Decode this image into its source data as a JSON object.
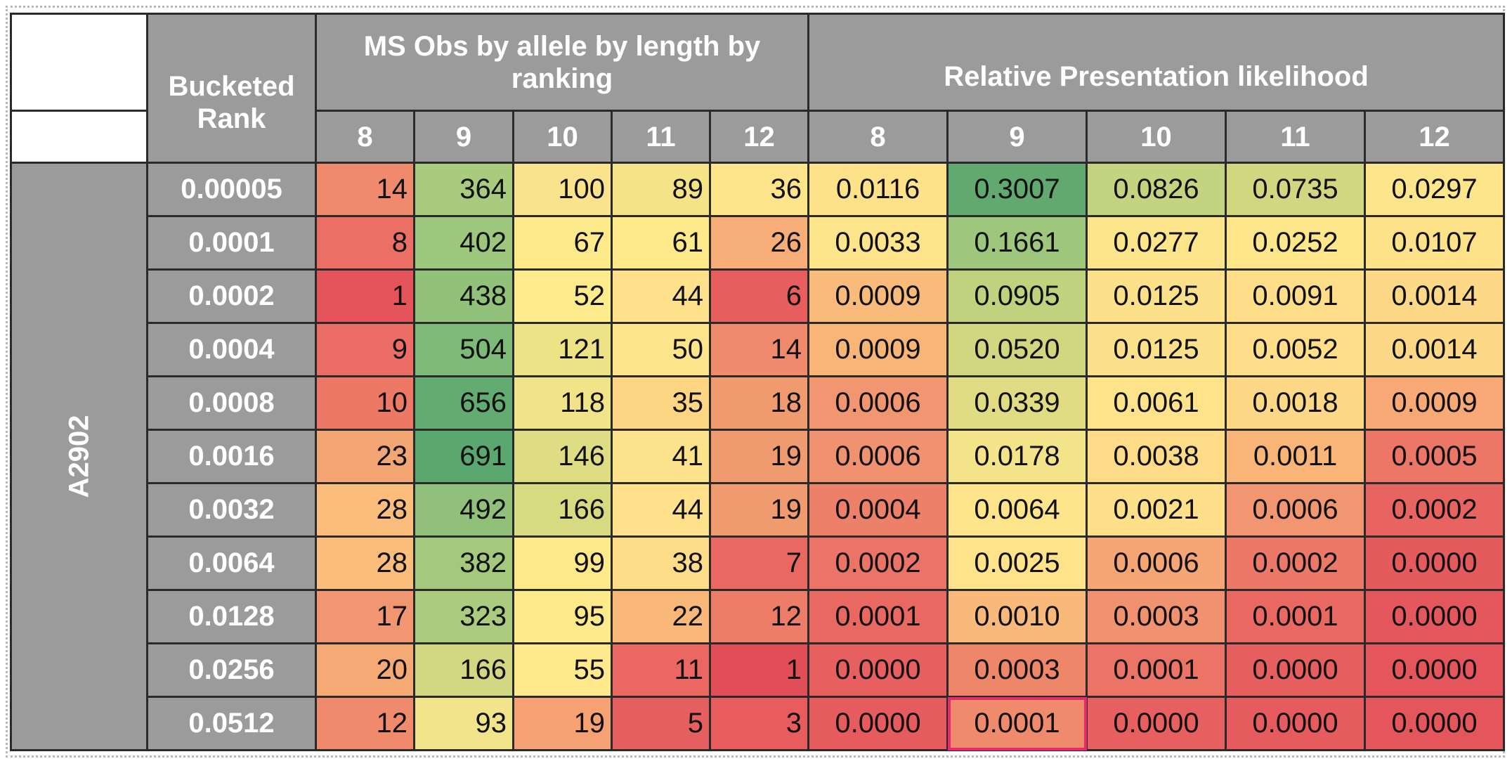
{
  "table": {
    "allele": "A2902",
    "rank_header": "Bucketed Rank",
    "ms_header": "MS Obs by allele by length by ranking",
    "rel_header": "Relative Presentation likelihood",
    "lengths": [
      "8",
      "9",
      "10",
      "11",
      "12"
    ],
    "rows": [
      {
        "rank": "0.00005",
        "ms": [
          "14",
          "364",
          "100",
          "89",
          "36"
        ],
        "rel": [
          "0.0116",
          "0.3007",
          "0.0826",
          "0.0735",
          "0.0297"
        ]
      },
      {
        "rank": "0.0001",
        "ms": [
          "8",
          "402",
          "67",
          "61",
          "26"
        ],
        "rel": [
          "0.0033",
          "0.1661",
          "0.0277",
          "0.0252",
          "0.0107"
        ]
      },
      {
        "rank": "0.0002",
        "ms": [
          "1",
          "438",
          "52",
          "44",
          "6"
        ],
        "rel": [
          "0.0009",
          "0.0905",
          "0.0125",
          "0.0091",
          "0.0014"
        ]
      },
      {
        "rank": "0.0004",
        "ms": [
          "9",
          "504",
          "121",
          "50",
          "14"
        ],
        "rel": [
          "0.0009",
          "0.0520",
          "0.0125",
          "0.0052",
          "0.0014"
        ]
      },
      {
        "rank": "0.0008",
        "ms": [
          "10",
          "656",
          "118",
          "35",
          "18"
        ],
        "rel": [
          "0.0006",
          "0.0339",
          "0.0061",
          "0.0018",
          "0.0009"
        ]
      },
      {
        "rank": "0.0016",
        "ms": [
          "23",
          "691",
          "146",
          "41",
          "19"
        ],
        "rel": [
          "0.0006",
          "0.0178",
          "0.0038",
          "0.0011",
          "0.0005"
        ]
      },
      {
        "rank": "0.0032",
        "ms": [
          "28",
          "492",
          "166",
          "44",
          "19"
        ],
        "rel": [
          "0.0004",
          "0.0064",
          "0.0021",
          "0.0006",
          "0.0002"
        ]
      },
      {
        "rank": "0.0064",
        "ms": [
          "28",
          "382",
          "99",
          "38",
          "7"
        ],
        "rel": [
          "0.0002",
          "0.0025",
          "0.0006",
          "0.0002",
          "0.0000"
        ]
      },
      {
        "rank": "0.0128",
        "ms": [
          "17",
          "323",
          "95",
          "22",
          "12"
        ],
        "rel": [
          "0.0001",
          "0.0010",
          "0.0003",
          "0.0001",
          "0.0000"
        ]
      },
      {
        "rank": "0.0256",
        "ms": [
          "20",
          "166",
          "55",
          "11",
          "1"
        ],
        "rel": [
          "0.0000",
          "0.0003",
          "0.0001",
          "0.0000",
          "0.0000"
        ]
      },
      {
        "rank": "0.0512",
        "ms": [
          "12",
          "93",
          "19",
          "5",
          "3"
        ],
        "rel": [
          "0.0000",
          "0.0001",
          "0.0000",
          "0.0000",
          "0.0000"
        ]
      }
    ],
    "colors": {
      "ms": [
        [
          "#ef8a6c",
          "#a8cb7e",
          "#f9e48d",
          "#f5e387",
          "#fee58b"
        ],
        [
          "#ec6f65",
          "#9dc77c",
          "#fdea8b",
          "#fcea8b",
          "#f6ad78"
        ],
        [
          "#e6545b",
          "#92c17a",
          "#feeb8c",
          "#fee18a",
          "#e85e5f"
        ],
        [
          "#ec6d65",
          "#7eba77",
          "#eee286",
          "#fee48a",
          "#ef8a6c"
        ],
        [
          "#ed7866",
          "#62ab71",
          "#f1e388",
          "#fdd583",
          "#f09a70"
        ],
        [
          "#f4a574",
          "#5aa870",
          "#dfdd83",
          "#fce28a",
          "#f09a70"
        ],
        [
          "#fbbd7b",
          "#91c07a",
          "#d8da81",
          "#fee18a",
          "#f09a70"
        ],
        [
          "#fbbd7b",
          "#a4c97c",
          "#fee98b",
          "#fedd88",
          "#e96962"
        ],
        [
          "#f29671",
          "#abcc7e",
          "#fee98b",
          "#f9b87a",
          "#ed7c68"
        ],
        [
          "#f5aa76",
          "#d2d881",
          "#feea8c",
          "#ea6762",
          "#e24e58"
        ],
        [
          "#ef8a6c",
          "#f2e48b",
          "#f6a174",
          "#e55f5e",
          "#e85c5d"
        ]
      ],
      "rel": [
        [
          "#fee28a",
          "#61a96f",
          "#c4d37f",
          "#d1d780",
          "#fde58b"
        ],
        [
          "#fee58b",
          "#9ec67c",
          "#fde58b",
          "#fee68b",
          "#fee28a"
        ],
        [
          "#f9bb7b",
          "#c1d27f",
          "#fde18a",
          "#fede88",
          "#fdd886"
        ],
        [
          "#f8b578",
          "#d1d781",
          "#fde18a",
          "#fede88",
          "#fdd886"
        ],
        [
          "#f29671",
          "#dfdc84",
          "#fee38a",
          "#fdd886",
          "#f8a975"
        ],
        [
          "#f09170",
          "#f3e48a",
          "#fddb87",
          "#f8b577",
          "#ec7766"
        ],
        [
          "#ed8069",
          "#fee58b",
          "#fde089",
          "#f29571",
          "#e86461"
        ],
        [
          "#eb7467",
          "#fee38a",
          "#f6a574",
          "#ec7867",
          "#e55a5d"
        ],
        [
          "#e96862",
          "#f9b97a",
          "#f09170",
          "#e96962",
          "#e4575c"
        ],
        [
          "#e75f5f",
          "#ee8669",
          "#eb7467",
          "#e65e5e",
          "#e4565b"
        ],
        [
          "#e65b5d",
          "#ef8b6c",
          "#e85f5f",
          "#e65b5d",
          "#e4565b"
        ]
      ]
    },
    "highlight": {
      "row": 10,
      "group": "rel",
      "col": 1,
      "color": "#e8296a"
    }
  }
}
